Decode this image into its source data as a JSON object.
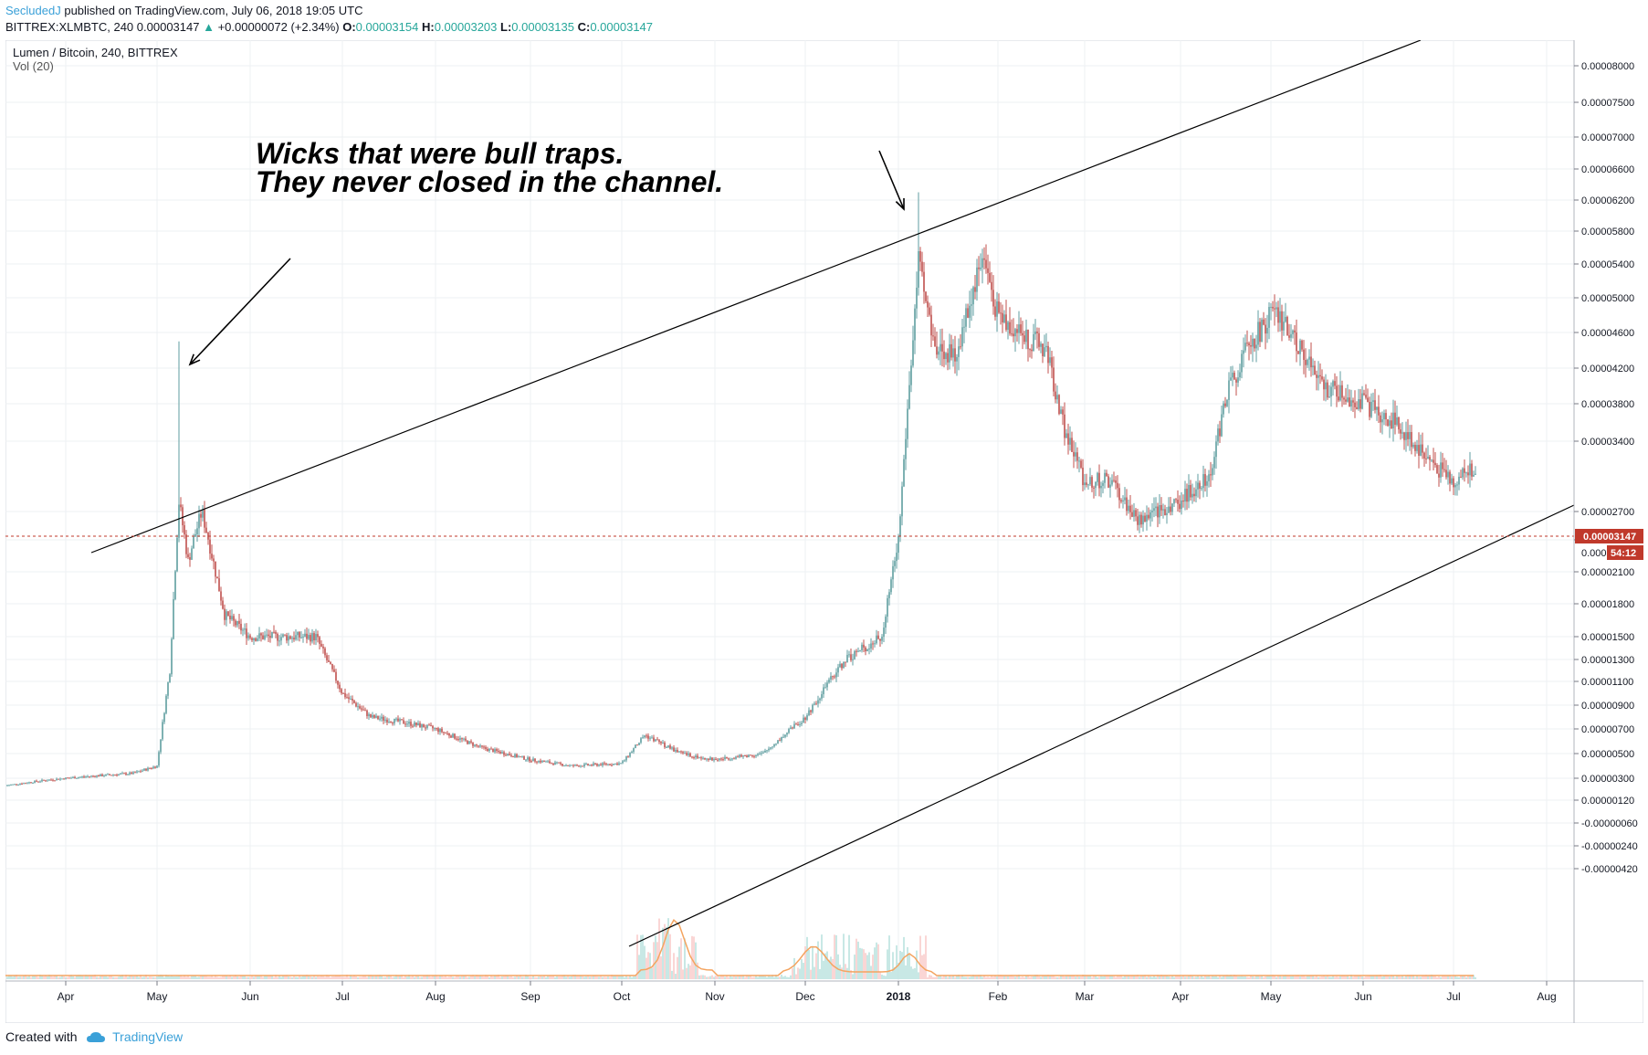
{
  "header": {
    "author": "SecludedJ",
    "published_text": "published on TradingView.com, July 06, 2018 19:05 UTC"
  },
  "info": {
    "symbol": "BITTREX:XLMBTC, 240",
    "last": "0.00003147",
    "up_arrow": "▲",
    "change": "+0.00000072 (+2.34%)",
    "open_label": "O:",
    "open": "0.00003154",
    "high_label": "H:",
    "high": "0.00003203",
    "low_label": "L:",
    "low": "0.00003135",
    "close_label": "C:",
    "close": "0.00003147"
  },
  "footer": {
    "created_with": "Created with",
    "brand": "TradingView",
    "brand_icon": "tradingview-cloud-icon"
  },
  "colors": {
    "up": "#26a69a",
    "down": "#ef5350",
    "candle_up": "#5f9ea0",
    "candle_down": "#c0504d",
    "price_line": "#c0392b",
    "volume_ma": "#f4a460",
    "trendline": "#000000",
    "grid": "#eef0f3"
  },
  "chart_data": {
    "type": "candlestick",
    "title": "Lumen / Bitcoin, 240, BITTREX",
    "indicator": "Vol (20)",
    "x_ticks": [
      "Apr",
      "May",
      "Jun",
      "Jul",
      "Aug",
      "Sep",
      "Oct",
      "Nov",
      "Dec",
      "2018",
      "Feb",
      "Mar",
      "Apr",
      "May",
      "Jun",
      "Jul",
      "Aug"
    ],
    "y_ticks": [
      "0.00008000",
      "0.00007500",
      "0.00007000",
      "0.00006600",
      "0.00006200",
      "0.00005800",
      "0.00005400",
      "0.00005000",
      "0.00004600",
      "0.00004200",
      "0.00003800",
      "0.00003400",
      "0.00002700",
      "0.00002400",
      "0.00002100",
      "0.00001800",
      "0.00001500",
      "0.00001300",
      "0.00001100",
      "0.00000900",
      "0.00000700",
      "0.00000500",
      "0.00000300",
      "0.00000120",
      "-0.00000060",
      "-0.00000240",
      "-0.00000420"
    ],
    "last_price_label": "0.00003147",
    "countdown_partial": "0.000",
    "countdown": "54:12",
    "annotation": [
      "Wicks that were bull traps.",
      "They never closed in the channel."
    ],
    "price_series": {
      "x": [
        "Apr 2017",
        "May 2017",
        "Jun 2017",
        "Jul 2017",
        "Aug 2017",
        "Sep 2017",
        "Oct 2017",
        "Nov 2017",
        "Dec 2017",
        "Jan 2018",
        "Feb 2018",
        "Mar 2018",
        "Apr 2018",
        "May 2018",
        "Jun 2018",
        "Jul 2018"
      ],
      "approx_close": [
        2.8e-06,
        4e-06,
        2.5e-05,
        1.5e-05,
        7.5e-06,
        5e-06,
        3.5e-06,
        4.7e-06,
        5e-06,
        1.6e-05,
        4e-05,
        3.7e-05,
        2.7e-05,
        4.7e-05,
        3.8e-05,
        3.15e-05
      ]
    },
    "wick_highs": [
      {
        "date": "May 2017",
        "value": 4.5e-05
      },
      {
        "date": "Jan 2018",
        "value": 6.3e-05
      }
    ],
    "current_price": 3.147e-05
  }
}
